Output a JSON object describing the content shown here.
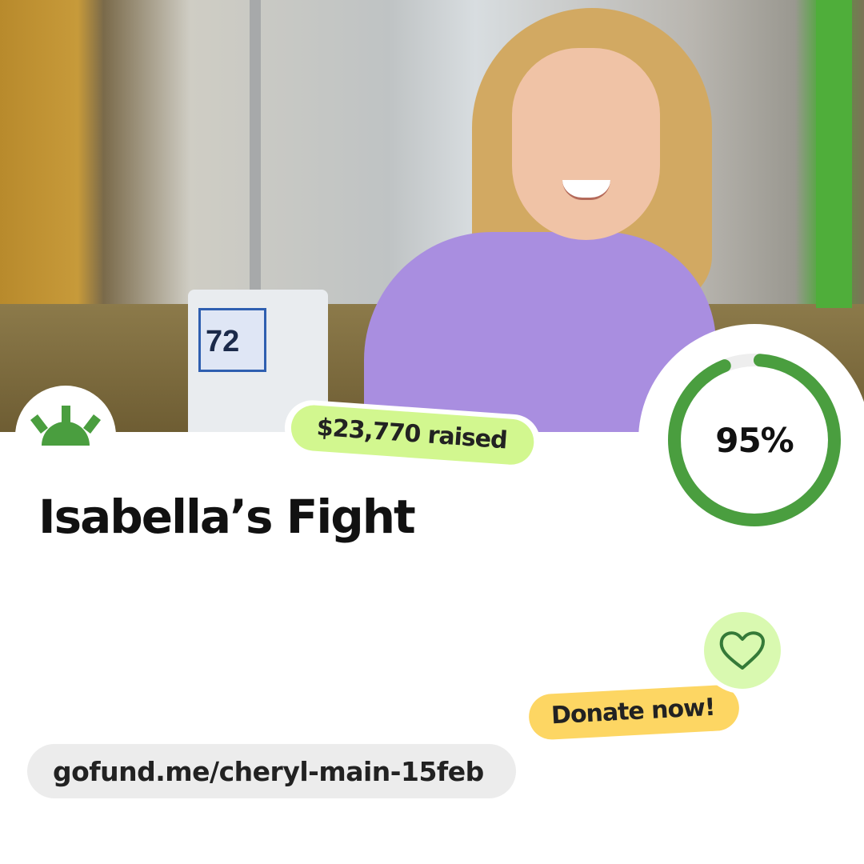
{
  "campaign": {
    "title": "Isabella’s Fight",
    "raised_label": "$23,770 raised",
    "progress_percent": 95,
    "progress_label": "95%",
    "donate_label": "Donate now!",
    "url": "gofund.me/cheryl-main-15feb"
  },
  "photo": {
    "pump_reading": "72"
  },
  "icons": {
    "logo": "gofundme-sun-logo-icon",
    "heart": "heart-outline-icon"
  },
  "colors": {
    "brand_green": "#4a9e3f",
    "raised_badge": "#d2f78f",
    "donate_badge": "#fdd663",
    "heart_circle": "#d9f9b0",
    "url_pill": "#ececec"
  }
}
